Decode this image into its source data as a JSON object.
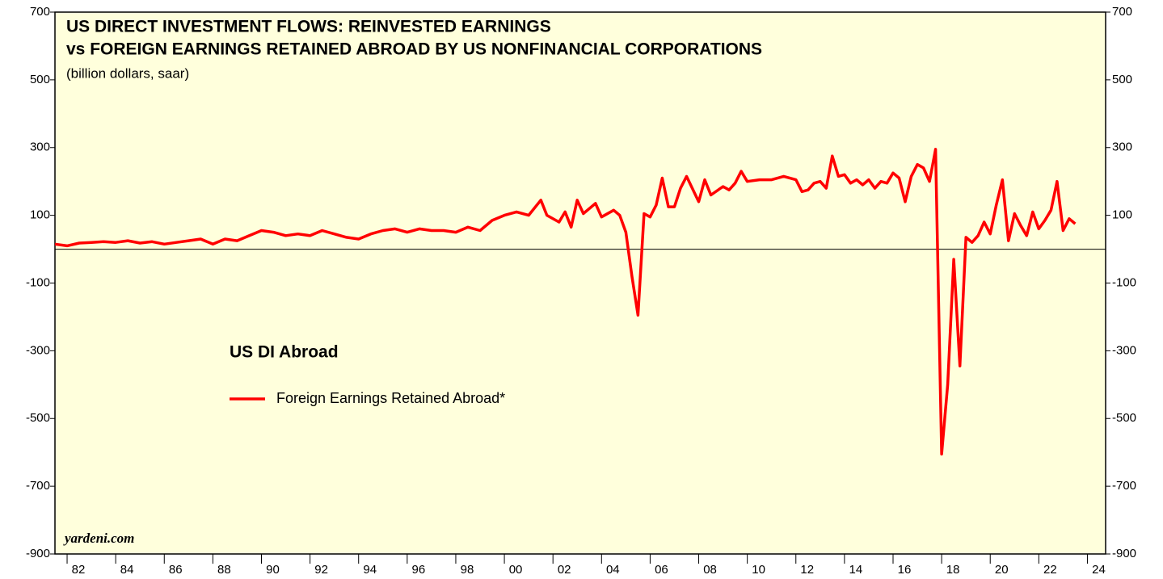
{
  "chart_data": {
    "type": "line",
    "title": "US DIRECT INVESTMENT FLOWS: REINVESTED EARNINGS",
    "title_line2": "vs FOREIGN EARNINGS RETAINED ABROAD BY US NONFINANCIAL CORPORATIONS",
    "subtitle": "(billion dollars, saar)",
    "legend_title": "US DI Abroad",
    "annotation": "yardeni.com",
    "x": [
      1981.5,
      1982,
      1982.5,
      1983,
      1983.5,
      1984,
      1984.5,
      1985,
      1985.5,
      1986,
      1986.5,
      1987,
      1987.5,
      1988,
      1988.5,
      1989,
      1989.5,
      1990,
      1990.5,
      1991,
      1991.5,
      1992,
      1992.5,
      1993,
      1993.5,
      1994,
      1994.5,
      1995,
      1995.5,
      1996,
      1996.5,
      1997,
      1997.5,
      1998,
      1998.5,
      1999,
      1999.5,
      2000,
      2000.5,
      2001,
      2001.5,
      2001.75,
      2002.25,
      2002.5,
      2002.75,
      2003,
      2003.25,
      2003.75,
      2004,
      2004.5,
      2004.75,
      2005,
      2005.25,
      2005.5,
      2005.75,
      2006,
      2006.25,
      2006.5,
      2006.75,
      2007,
      2007.25,
      2007.5,
      2008,
      2008.25,
      2008.5,
      2009,
      2009.25,
      2009.5,
      2009.75,
      2010,
      2010.5,
      2011,
      2011.5,
      2012,
      2012.25,
      2012.5,
      2012.75,
      2013,
      2013.25,
      2013.5,
      2013.75,
      2014,
      2014.25,
      2014.5,
      2014.75,
      2015,
      2015.25,
      2015.5,
      2015.75,
      2016,
      2016.25,
      2016.5,
      2016.75,
      2017,
      2017.25,
      2017.5,
      2017.75,
      2018,
      2018.25,
      2018.5,
      2018.75,
      2019,
      2019.25,
      2019.5,
      2019.75,
      2020,
      2020.25,
      2020.5,
      2020.75,
      2021,
      2021.25,
      2021.5,
      2021.75,
      2022,
      2022.25,
      2022.5,
      2022.75,
      2023,
      2023.25,
      2023.5
    ],
    "series": [
      {
        "name": "Foreign Earnings Retained Abroad*",
        "color": "#ff0000",
        "values": [
          15,
          10,
          18,
          20,
          22,
          20,
          25,
          18,
          22,
          15,
          20,
          25,
          30,
          15,
          30,
          25,
          40,
          55,
          50,
          40,
          45,
          40,
          55,
          45,
          35,
          30,
          45,
          55,
          60,
          50,
          60,
          55,
          55,
          50,
          65,
          55,
          85,
          100,
          110,
          100,
          145,
          100,
          80,
          110,
          65,
          145,
          105,
          135,
          95,
          115,
          100,
          50,
          -80,
          -195,
          105,
          95,
          130,
          210,
          125,
          125,
          180,
          215,
          140,
          205,
          160,
          185,
          175,
          195,
          230,
          200,
          205,
          205,
          215,
          205,
          170,
          175,
          195,
          200,
          180,
          275,
          215,
          220,
          195,
          205,
          190,
          205,
          180,
          200,
          195,
          225,
          210,
          140,
          215,
          250,
          240,
          200,
          295,
          -605,
          -400,
          -30,
          -345,
          35,
          20,
          40,
          80,
          45,
          130,
          205,
          25,
          105,
          70,
          40,
          110,
          60,
          85,
          115,
          200,
          55,
          90,
          75
        ]
      }
    ],
    "xlim": [
      1981.5,
      2024.75
    ],
    "xticks": [
      {
        "value": 1982,
        "label": "82"
      },
      {
        "value": 1984,
        "label": "84"
      },
      {
        "value": 1986,
        "label": "86"
      },
      {
        "value": 1988,
        "label": "88"
      },
      {
        "value": 1990,
        "label": "90"
      },
      {
        "value": 1992,
        "label": "92"
      },
      {
        "value": 1994,
        "label": "94"
      },
      {
        "value": 1996,
        "label": "96"
      },
      {
        "value": 1998,
        "label": "98"
      },
      {
        "value": 2000,
        "label": "00"
      },
      {
        "value": 2002,
        "label": "02"
      },
      {
        "value": 2004,
        "label": "04"
      },
      {
        "value": 2006,
        "label": "06"
      },
      {
        "value": 2008,
        "label": "08"
      },
      {
        "value": 2010,
        "label": "10"
      },
      {
        "value": 2012,
        "label": "12"
      },
      {
        "value": 2014,
        "label": "14"
      },
      {
        "value": 2016,
        "label": "16"
      },
      {
        "value": 2018,
        "label": "18"
      },
      {
        "value": 2020,
        "label": "20"
      },
      {
        "value": 2022,
        "label": "22"
      },
      {
        "value": 2024,
        "label": "24"
      }
    ],
    "ylim": [
      -900,
      700
    ],
    "yticks": [
      700,
      500,
      300,
      100,
      -100,
      -300,
      -500,
      -700,
      -900
    ],
    "zero_line": true
  }
}
